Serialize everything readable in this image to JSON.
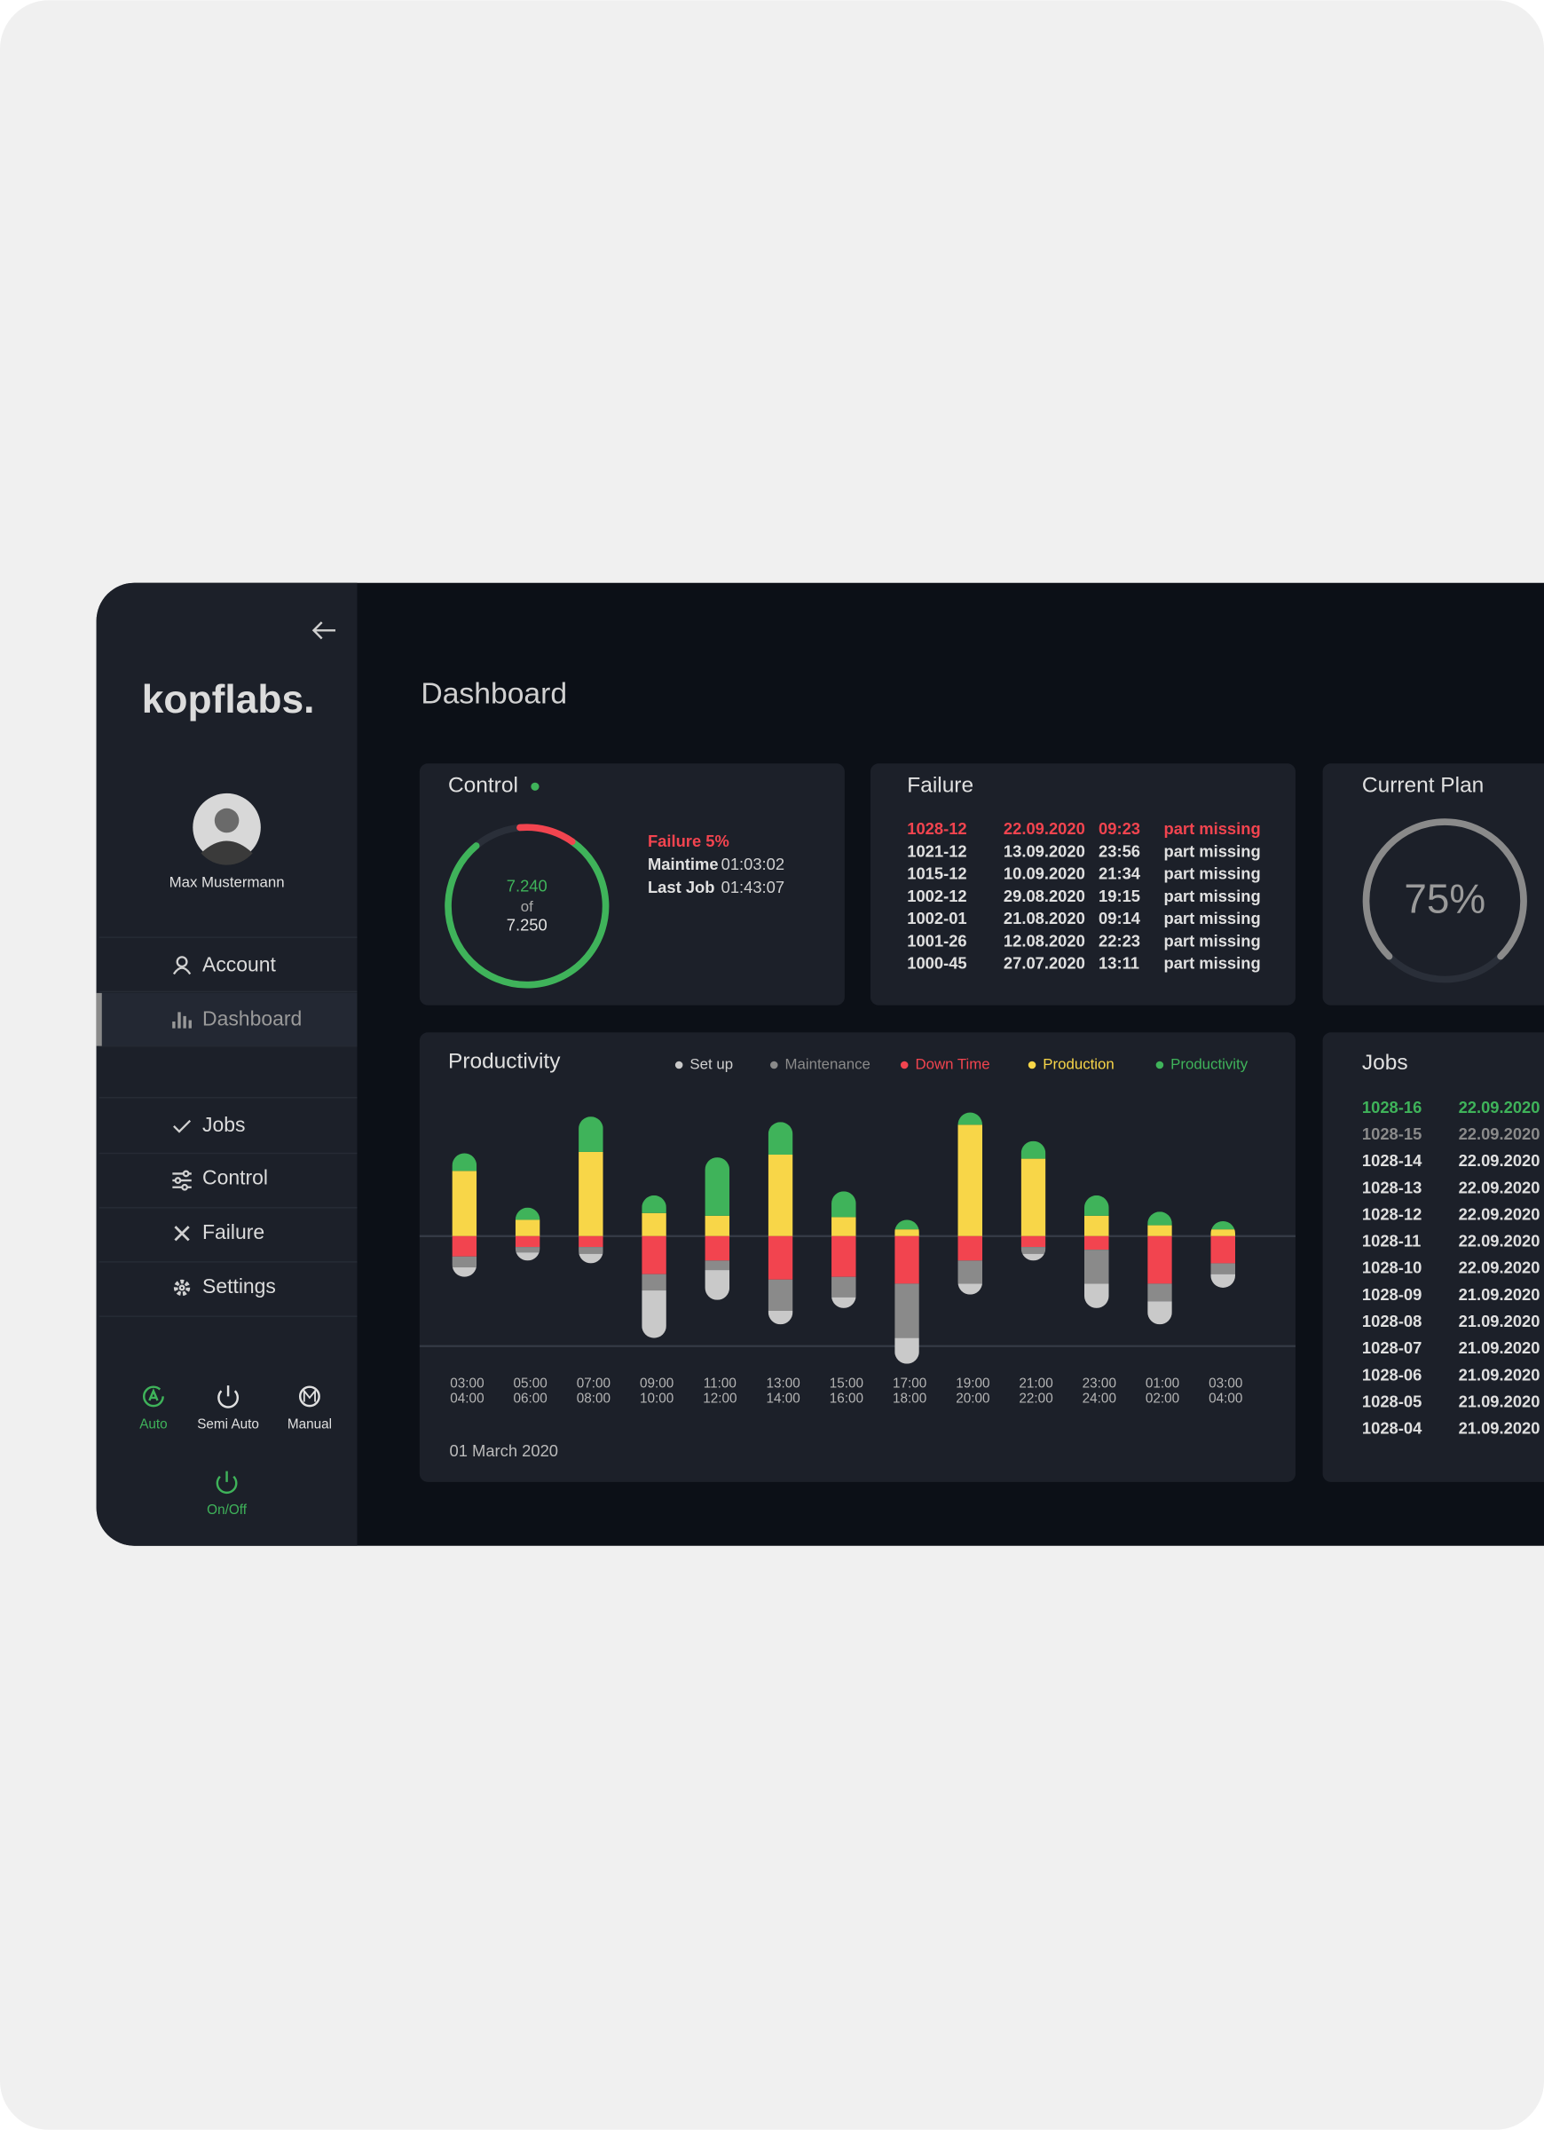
{
  "sidebar": {
    "logo": "kopflabs.",
    "user": "Max Mustermann",
    "menu": [
      "Account",
      "Dashboard",
      "Jobs",
      "Control",
      "Failure",
      "Settings"
    ],
    "modes": [
      "Auto",
      "Semi Auto",
      "Manual"
    ],
    "power": "On/Off"
  },
  "title": "Dashboard",
  "control": {
    "title": "Control",
    "done": "7.240",
    "of": "of",
    "total": "7.250",
    "failure": "Failure 5%",
    "stats": [
      {
        "label": "Maintime",
        "value": "01:03:02"
      },
      {
        "label": "Last Job",
        "value": "01:43:07"
      }
    ]
  },
  "failure": {
    "title": "Failure",
    "rows": [
      [
        "1028-12",
        "22.09.2020",
        "09:23",
        "part missing"
      ],
      [
        "1021-12",
        "13.09.2020",
        "23:56",
        "part missing"
      ],
      [
        "1015-12",
        "10.09.2020",
        "21:34",
        "part missing"
      ],
      [
        "1002-12",
        "29.08.2020",
        "19:15",
        "part missing"
      ],
      [
        "1002-01",
        "21.08.2020",
        "09:14",
        "part missing"
      ],
      [
        "1001-26",
        "12.08.2020",
        "22:23",
        "part missing"
      ],
      [
        "1000-45",
        "27.07.2020",
        "13:11",
        "part missing"
      ]
    ]
  },
  "current_plan": {
    "title": "Current Plan",
    "values": [
      75
    ],
    "value_labels": [
      "75%"
    ],
    "color": "#8a8a8a"
  },
  "productivity": {
    "type": "bar",
    "title": "Productivity",
    "date": "01 March 2020",
    "x_start": [
      "03:00",
      "05:00",
      "07:00",
      "09:00",
      "11:00",
      "13:00",
      "15:00",
      "17:00",
      "19:00",
      "21:00",
      "23:00",
      "01:00",
      "03:00"
    ],
    "x_end": [
      "04:00",
      "06:00",
      "08:00",
      "10:00",
      "12:00",
      "14:00",
      "16:00",
      "18:00",
      "20:00",
      "22:00",
      "24:00",
      "02:00",
      "04:00"
    ],
    "series": [
      {
        "name": "Set up",
        "color": "#c9c9c9",
        "values": [
          7,
          6,
          7,
          35,
          22,
          10,
          8,
          19,
          8,
          5,
          18,
          17,
          10
        ]
      },
      {
        "name": "Maintenance",
        "color": "#8a8a8a",
        "values": [
          8,
          4,
          5,
          12,
          7,
          23,
          15,
          40,
          17,
          5,
          25,
          13,
          8
        ]
      },
      {
        "name": "Down Time",
        "color": "#f2444f",
        "values": [
          15,
          8,
          8,
          28,
          18,
          32,
          30,
          35,
          18,
          8,
          10,
          35,
          20
        ]
      },
      {
        "name": "Production",
        "color": "#f8d648",
        "values": [
          48,
          12,
          62,
          17,
          15,
          60,
          14,
          5,
          82,
          57,
          15,
          8,
          5
        ]
      },
      {
        "name": "Productivity",
        "color": "#3fb35a",
        "values": [
          13,
          9,
          26,
          13,
          43,
          24,
          19,
          7,
          9,
          13,
          15,
          10,
          6
        ]
      }
    ]
  },
  "jobs": {
    "title": "Jobs",
    "rows": [
      [
        "1028-16",
        "22.09.2020"
      ],
      [
        "1028-15",
        "22.09.2020"
      ],
      [
        "1028-14",
        "22.09.2020"
      ],
      [
        "1028-13",
        "22.09.2020"
      ],
      [
        "1028-12",
        "22.09.2020"
      ],
      [
        "1028-11",
        "22.09.2020"
      ],
      [
        "1028-10",
        "22.09.2020"
      ],
      [
        "1028-09",
        "21.09.2020"
      ],
      [
        "1028-08",
        "21.09.2020"
      ],
      [
        "1028-07",
        "21.09.2020"
      ],
      [
        "1028-06",
        "21.09.2020"
      ],
      [
        "1028-05",
        "21.09.2020"
      ],
      [
        "1028-04",
        "21.09.2020"
      ]
    ]
  }
}
